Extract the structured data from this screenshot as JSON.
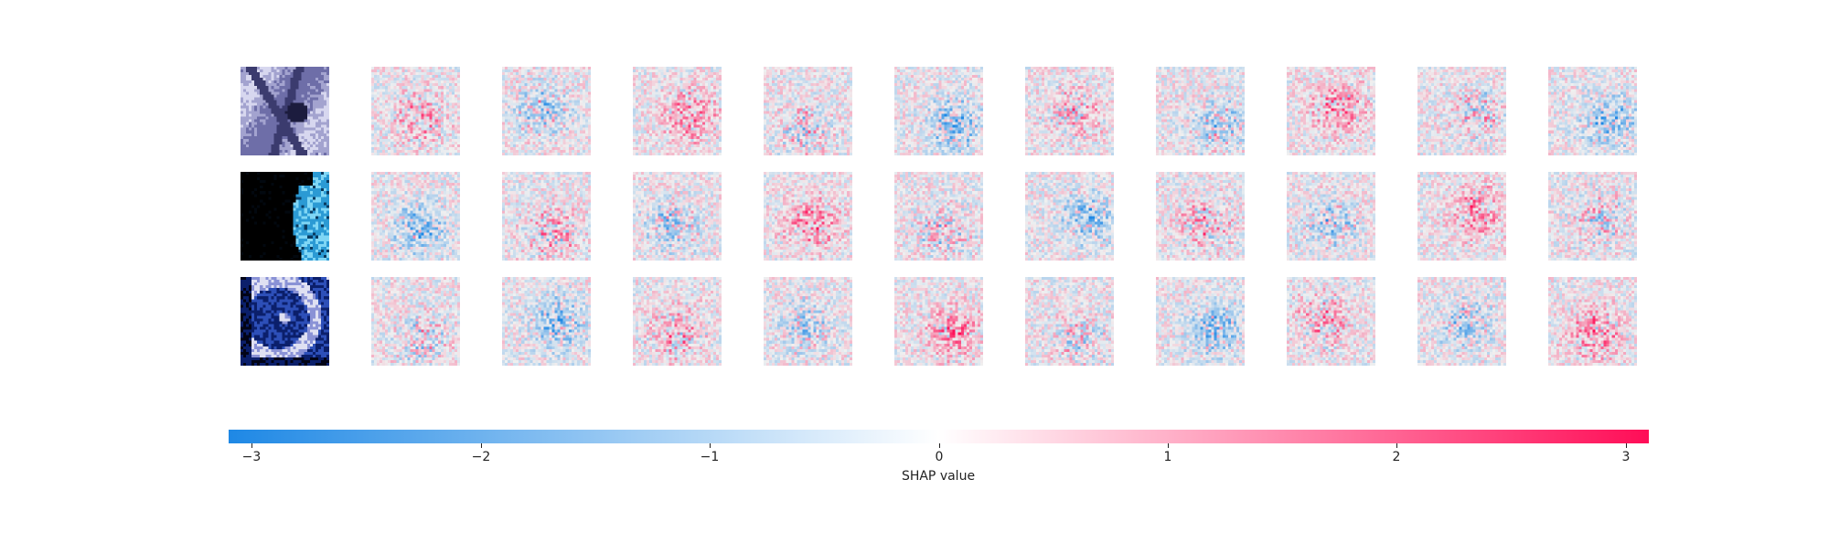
{
  "chart_data": {
    "type": "heatmap",
    "description_role": "SHAP image explanation grid",
    "rows": 3,
    "columns_per_row": 11,
    "input_images": [
      {
        "row": 0,
        "palette": [
          "#1c1c3e",
          "#3b3b6e",
          "#6e6ea8",
          "#a3a3cf",
          "#d7d7ef"
        ]
      },
      {
        "row": 1,
        "palette": [
          "#000000",
          "#02080f",
          "#0a3a5f",
          "#2b9ad4",
          "#7fd6f5"
        ]
      },
      {
        "row": 2,
        "palette": [
          "#020417",
          "#0b1f6b",
          "#2d4fb8",
          "#8a92d6",
          "#dfe0f2"
        ]
      }
    ],
    "shap_panels": 10,
    "colorbar": {
      "label": "SHAP value",
      "min": -3.1,
      "max": 3.1,
      "ticks": [
        -3,
        -2,
        -1,
        0,
        1,
        2,
        3
      ],
      "tick_labels": [
        "−3",
        "−2",
        "−1",
        "0",
        "1",
        "2",
        "3"
      ],
      "colors": {
        "negative": "#1e88e5",
        "zero": "#ffffff",
        "positive": "#ff0d57"
      }
    },
    "background_gray": "#dcdcdc"
  }
}
